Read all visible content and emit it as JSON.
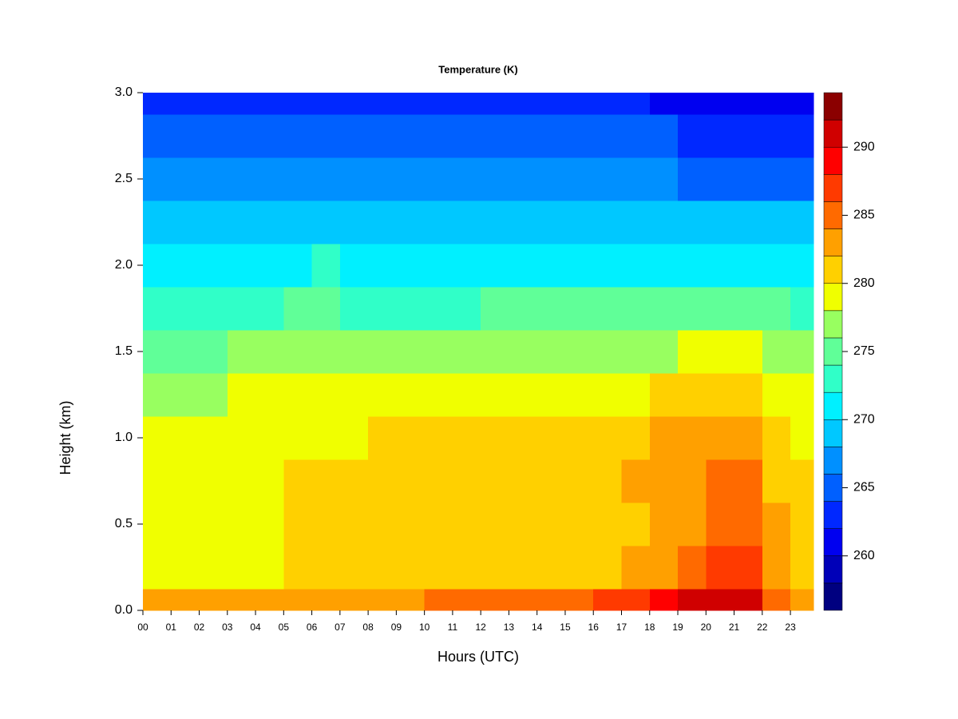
{
  "chart_data": {
    "type": "contour",
    "title": "Temperature (K)",
    "xlabel": "Hours (UTC)",
    "ylabel": "Height (km)",
    "x": [
      0,
      1,
      2,
      3,
      4,
      5,
      6,
      7,
      8,
      9,
      10,
      11,
      12,
      13,
      14,
      15,
      16,
      17,
      18,
      19,
      20,
      21,
      22,
      23
    ],
    "y": [
      0,
      0.25,
      0.5,
      0.75,
      1,
      1.25,
      1.5,
      1.75,
      2,
      2.25,
      2.5,
      2.75,
      3
    ],
    "z": [
      [
        283,
        283,
        283,
        283,
        283,
        283,
        283,
        283,
        283,
        283,
        284,
        284,
        284,
        284,
        285,
        285,
        286,
        287,
        288,
        290,
        291,
        290,
        284,
        283
      ],
      [
        279,
        279,
        279,
        279,
        279,
        280,
        281,
        281,
        281,
        281,
        281,
        281,
        281,
        281,
        281,
        281,
        281,
        282,
        283,
        284,
        286,
        286,
        282,
        281
      ],
      [
        279,
        279,
        279,
        279,
        279,
        281,
        281,
        281,
        281,
        281,
        281,
        281,
        281,
        281,
        281,
        281,
        281,
        281,
        282,
        283,
        285,
        285,
        282,
        281
      ],
      [
        279,
        279,
        279,
        279,
        279,
        280,
        281,
        281,
        281,
        281,
        281,
        281,
        281,
        281,
        281,
        281,
        281,
        282,
        283,
        283,
        284,
        284,
        281,
        280
      ],
      [
        278,
        278,
        278,
        279,
        279,
        279,
        279,
        279,
        280,
        280,
        280,
        280,
        280,
        280,
        280,
        280,
        280,
        281,
        282,
        283,
        283,
        283,
        280,
        279
      ],
      [
        277,
        277,
        277,
        278,
        278,
        278,
        278,
        278,
        278,
        278,
        278,
        278,
        278,
        278,
        278,
        278,
        278,
        279,
        280,
        281,
        281,
        281,
        279,
        278
      ],
      [
        275,
        275,
        275,
        276,
        276,
        276,
        276,
        276,
        276,
        276,
        276,
        276,
        276,
        276,
        276,
        276,
        276,
        277,
        277,
        278,
        278,
        278,
        277,
        276
      ],
      [
        273,
        273,
        273,
        273,
        273,
        274,
        274,
        273,
        273,
        273,
        273,
        273,
        274,
        274,
        274,
        274,
        274,
        274,
        274,
        274,
        275,
        274,
        274,
        273
      ],
      [
        271,
        271,
        271,
        271,
        271,
        271,
        272,
        271,
        270,
        270,
        271,
        271,
        271,
        271,
        271,
        271,
        271,
        271,
        271,
        271,
        271,
        271,
        270,
        270
      ],
      [
        268,
        268,
        269,
        269,
        269,
        269,
        269,
        268,
        268,
        268,
        268,
        268,
        268,
        268,
        269,
        269,
        269,
        269,
        268,
        268,
        268,
        268,
        268,
        268
      ],
      [
        266,
        266,
        266,
        266,
        266,
        266,
        267,
        266,
        266,
        266,
        266,
        266,
        266,
        266,
        266,
        266,
        266,
        266,
        266,
        265,
        265,
        265,
        265,
        265
      ],
      [
        264,
        264,
        264,
        264,
        264,
        264,
        264,
        264,
        264,
        264,
        264,
        264,
        264,
        264,
        264,
        264,
        264,
        264,
        264,
        263,
        263,
        263,
        263,
        262
      ],
      [
        262,
        262,
        262,
        262,
        262,
        262,
        262,
        262,
        262,
        262,
        262,
        262,
        262,
        262,
        262,
        262,
        262,
        262,
        261,
        261,
        261,
        261,
        261,
        260
      ]
    ],
    "xlim": [
      0,
      23.82
    ],
    "ylim": [
      0,
      3
    ],
    "xticks": [
      {
        "value": 0,
        "label": "00"
      },
      {
        "value": 1,
        "label": "01"
      },
      {
        "value": 2,
        "label": "02"
      },
      {
        "value": 3,
        "label": "03"
      },
      {
        "value": 4,
        "label": "04"
      },
      {
        "value": 5,
        "label": "05"
      },
      {
        "value": 6,
        "label": "06"
      },
      {
        "value": 7,
        "label": "07"
      },
      {
        "value": 8,
        "label": "08"
      },
      {
        "value": 9,
        "label": "09"
      },
      10,
      11,
      12,
      13,
      14,
      15,
      16,
      17,
      18,
      19,
      20,
      21,
      22,
      23
    ],
    "yticks": [
      {
        "value": 0,
        "label": "0.0"
      },
      0.5,
      {
        "value": 1,
        "label": "1.0"
      },
      1.5,
      {
        "value": 2,
        "label": "2.0"
      },
      2.5,
      {
        "value": 3,
        "label": "3.0"
      }
    ],
    "levels": [
      256,
      258,
      260,
      262,
      264,
      266,
      268,
      270,
      272,
      274,
      276,
      278,
      280,
      282,
      284,
      286,
      288,
      290,
      292,
      294
    ],
    "colors": [
      "#000080",
      "#0000b8",
      "#0000f0",
      "#0028ff",
      "#0060ff",
      "#0090ff",
      "#00c8ff",
      "#00f0ff",
      "#30ffc8",
      "#60ff98",
      "#98ff60",
      "#f0ff00",
      "#ffd000",
      "#ffa000",
      "#ff6a00",
      "#ff3a00",
      "#ff0000",
      "#d00000",
      "#8b0000"
    ],
    "clim": [
      256,
      294
    ],
    "cticks": [
      260,
      265,
      270,
      275,
      280,
      285,
      290
    ]
  }
}
